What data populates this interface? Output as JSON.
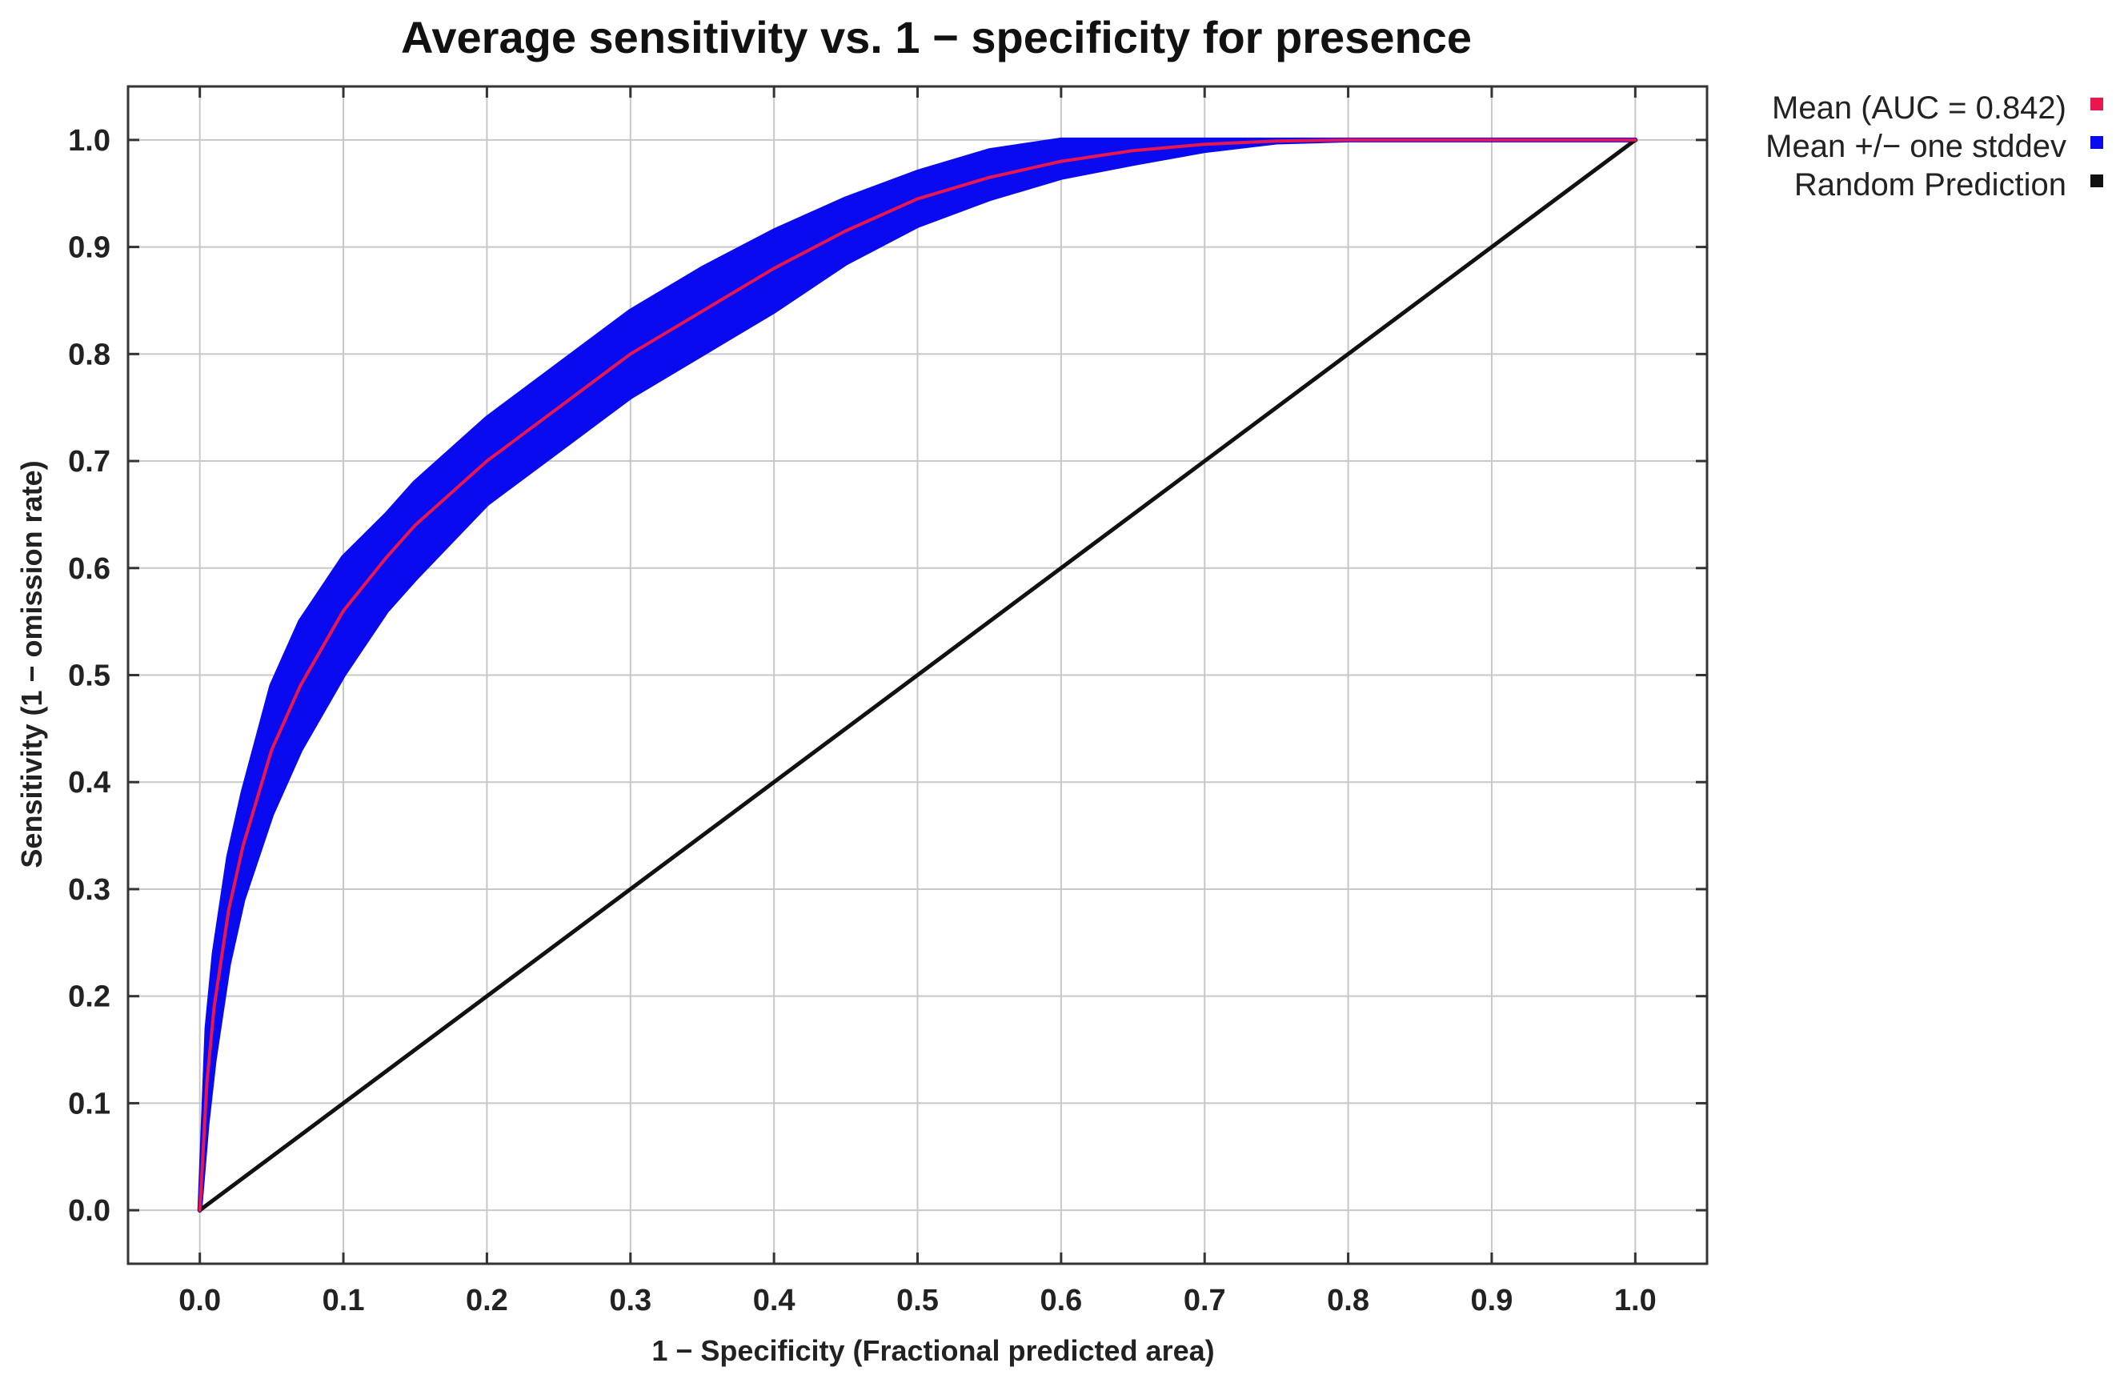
{
  "chart_data": {
    "type": "line",
    "title": "Average sensitivity vs. 1 − specificity for presence",
    "xlabel": "1 − Specificity (Fractional predicted area)",
    "ylabel": "Sensitivity (1 − omission rate)",
    "xlim": [
      -0.05,
      1.05
    ],
    "ylim": [
      -0.05,
      1.05
    ],
    "grid": true,
    "legend_position": "top-right outside",
    "x_ticks": [
      "0.0",
      "0.1",
      "0.2",
      "0.3",
      "0.4",
      "0.5",
      "0.6",
      "0.7",
      "0.8",
      "0.9",
      "1.0"
    ],
    "y_ticks": [
      "0.0",
      "0.1",
      "0.2",
      "0.3",
      "0.4",
      "0.5",
      "0.6",
      "0.7",
      "0.8",
      "0.9",
      "1.0"
    ],
    "x_tick_values": [
      0,
      0.1,
      0.2,
      0.3,
      0.4,
      0.5,
      0.6,
      0.7,
      0.8,
      0.9,
      1.0
    ],
    "y_tick_values": [
      0,
      0.1,
      0.2,
      0.3,
      0.4,
      0.5,
      0.6,
      0.7,
      0.8,
      0.9,
      1.0
    ],
    "series": [
      {
        "name": "Mean (AUC = 0.842)",
        "kind": "line",
        "color": "#e8174d",
        "x": [
          0,
          0.005,
          0.01,
          0.02,
          0.03,
          0.05,
          0.07,
          0.1,
          0.13,
          0.15,
          0.2,
          0.25,
          0.3,
          0.35,
          0.4,
          0.45,
          0.5,
          0.55,
          0.6,
          0.65,
          0.7,
          0.75,
          0.8,
          0.9,
          1.0
        ],
        "y": [
          0,
          0.12,
          0.19,
          0.28,
          0.34,
          0.43,
          0.49,
          0.56,
          0.61,
          0.64,
          0.7,
          0.75,
          0.8,
          0.84,
          0.88,
          0.915,
          0.945,
          0.965,
          0.98,
          0.99,
          0.996,
          0.999,
          1.0,
          1.0,
          1.0
        ]
      },
      {
        "name": "Mean +/− one stddev",
        "kind": "band",
        "color": "#0a0af0",
        "x": [
          0,
          0.005,
          0.01,
          0.02,
          0.03,
          0.05,
          0.07,
          0.1,
          0.13,
          0.15,
          0.2,
          0.25,
          0.3,
          0.35,
          0.4,
          0.45,
          0.5,
          0.55,
          0.6,
          0.65,
          0.7,
          0.75,
          0.8,
          0.9,
          1.0
        ],
        "upper": [
          0,
          0.17,
          0.24,
          0.33,
          0.39,
          0.49,
          0.55,
          0.61,
          0.65,
          0.68,
          0.74,
          0.79,
          0.84,
          0.88,
          0.915,
          0.945,
          0.97,
          0.99,
          1.0,
          1.0,
          1.0,
          1.0,
          1.0,
          1.0,
          1.0
        ],
        "lower": [
          0,
          0.08,
          0.14,
          0.23,
          0.29,
          0.37,
          0.43,
          0.5,
          0.56,
          0.59,
          0.66,
          0.71,
          0.76,
          0.8,
          0.84,
          0.885,
          0.92,
          0.945,
          0.965,
          0.978,
          0.99,
          0.998,
          1.0,
          1.0,
          1.0
        ]
      },
      {
        "name": "Random Prediction",
        "kind": "line",
        "color": "#111111",
        "x": [
          0,
          1.0
        ],
        "y": [
          0,
          1.0
        ]
      }
    ]
  }
}
